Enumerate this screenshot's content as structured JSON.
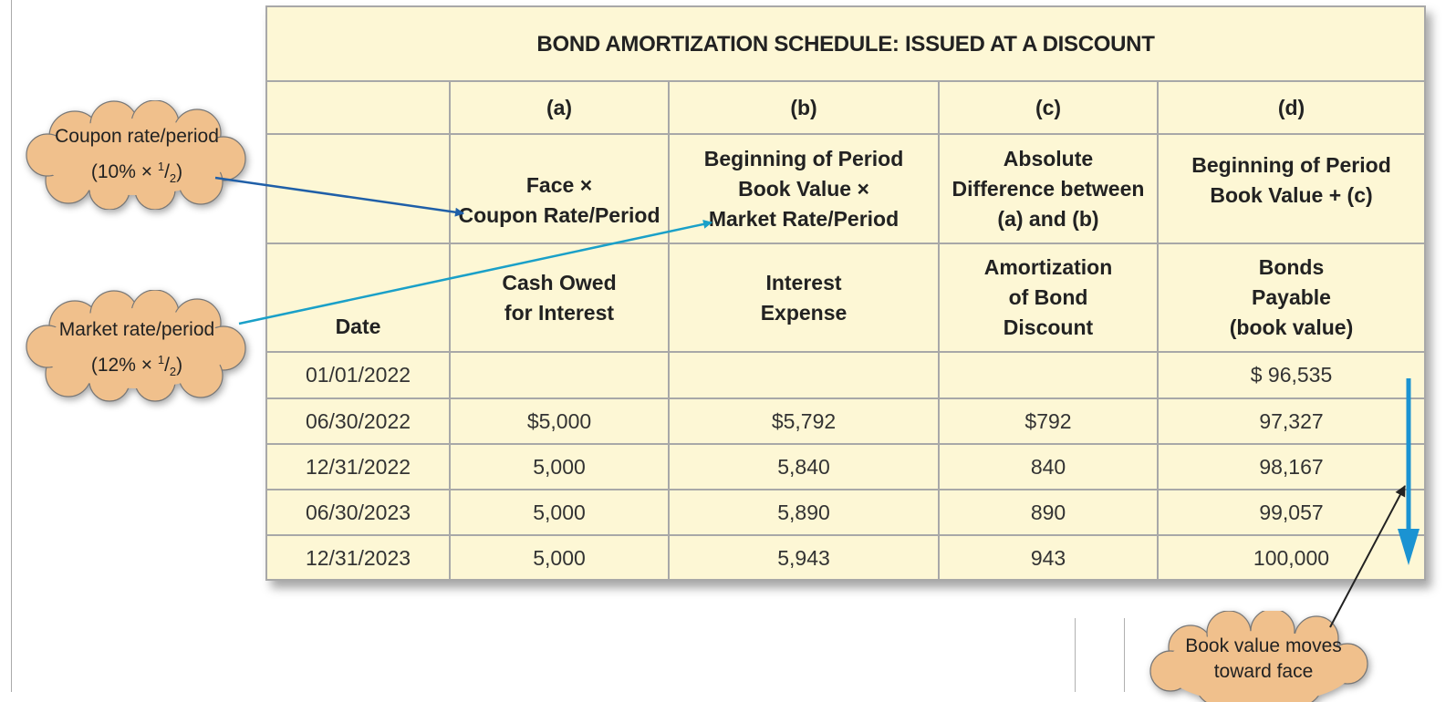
{
  "table": {
    "title": "BOND AMORTIZATION SCHEDULE: ISSUED AT A DISCOUNT",
    "column_letters": [
      "(a)",
      "(b)",
      "(c)",
      "(d)"
    ],
    "formulas": [
      [
        "Face ×",
        "Coupon Rate/Period"
      ],
      [
        "Beginning of Period",
        "Book Value ×",
        "Market Rate/Period"
      ],
      [
        "Absolute",
        "Difference between",
        "(a) and (b)"
      ],
      [
        "Beginning of Period",
        "Book Value + (c)"
      ]
    ],
    "headers": {
      "date": "Date",
      "columns": [
        [
          "Cash Owed",
          "for Interest"
        ],
        [
          "Interest",
          "Expense"
        ],
        [
          "Amortization",
          "of Bond",
          "Discount"
        ],
        [
          "Bonds",
          "Payable",
          "(book value)"
        ]
      ]
    },
    "rows": [
      [
        "01/01/2022",
        "",
        "",
        "",
        "$  96,535"
      ],
      [
        "06/30/2022",
        "$5,000",
        "$5,792",
        "$792",
        "97,327"
      ],
      [
        "12/31/2022",
        "5,000",
        "5,840",
        "840",
        "98,167"
      ],
      [
        "06/30/2023",
        "5,000",
        "5,890",
        "890",
        "99,057"
      ],
      [
        "12/31/2023",
        "5,000",
        "5,943",
        "943",
        "100,000"
      ]
    ]
  },
  "callouts": {
    "coupon": {
      "line1": "Coupon rate/period",
      "pct": "10%",
      "times": "×",
      "num": "1",
      "den": "2"
    },
    "market": {
      "line1": "Market rate/period",
      "pct": "12%",
      "times": "×",
      "num": "1",
      "den": "2"
    },
    "book_value": {
      "line1": "Book value moves",
      "line2": "toward face"
    }
  },
  "colors": {
    "table_fill": "#fdf7d5",
    "grid": "#a8a8a8",
    "cloud_fill": "#f0c08c",
    "coupon_arrow": "#1f5fa8",
    "market_arrow": "#1aa0c8",
    "book_value_arrow": "#1b93d2",
    "pointer_arrow": "#222222"
  }
}
